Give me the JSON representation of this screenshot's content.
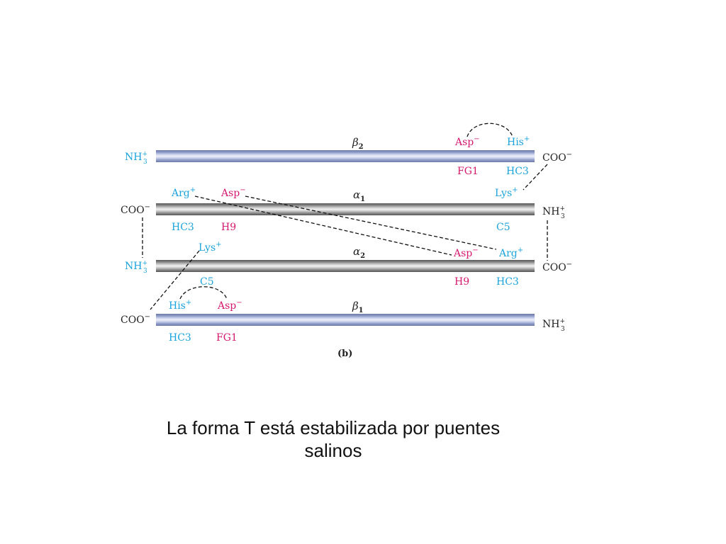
{
  "colors": {
    "cyan": "#1aa3dc",
    "pink": "#d6186f",
    "beta_band": "#8f9bc8",
    "alpha_band": "#9a9a9a"
  },
  "diagram": {
    "panel_label": "(b)",
    "chains": {
      "beta2": {
        "greek": "β",
        "sub": "2",
        "left_terminus": "NH",
        "left_charge": "+",
        "left_sub": "3",
        "right_terminus": "COO",
        "right_charge": "−"
      },
      "alpha1": {
        "greek": "α",
        "sub": "1",
        "left_terminus": "COO",
        "left_charge": "−",
        "right_terminus": "NH",
        "right_charge": "+",
        "right_sub": "3"
      },
      "alpha2": {
        "greek": "α",
        "sub": "2",
        "left_terminus": "NH",
        "left_charge": "+",
        "left_sub": "3",
        "right_terminus": "COO",
        "right_charge": "−"
      },
      "beta1": {
        "greek": "β",
        "sub": "1",
        "left_terminus": "COO",
        "left_charge": "−",
        "right_terminus": "NH",
        "right_charge": "+",
        "right_sub": "3"
      }
    },
    "residues": {
      "beta2_asp": {
        "name": "Asp",
        "charge": "−",
        "position": "FG1"
      },
      "beta2_his": {
        "name": "His",
        "charge": "+",
        "position": "HC3"
      },
      "alpha1_arg": {
        "name": "Arg",
        "charge": "+",
        "position": "HC3"
      },
      "alpha1_asp": {
        "name": "Asp",
        "charge": "−",
        "position": "H9"
      },
      "alpha1_lys": {
        "name": "Lys",
        "charge": "+",
        "position": "C5"
      },
      "alpha2_lys": {
        "name": "Lys",
        "charge": "+",
        "position": "C5"
      },
      "alpha2_asp": {
        "name": "Asp",
        "charge": "−",
        "position": "H9"
      },
      "alpha2_arg": {
        "name": "Arg",
        "charge": "+",
        "position": "HC3"
      },
      "beta1_his": {
        "name": "His",
        "charge": "+",
        "position": "HC3"
      },
      "beta1_asp": {
        "name": "Asp",
        "charge": "−",
        "position": "FG1"
      }
    }
  },
  "caption": {
    "line1": "La forma T está estabilizada por puentes",
    "line2": "salinos"
  }
}
